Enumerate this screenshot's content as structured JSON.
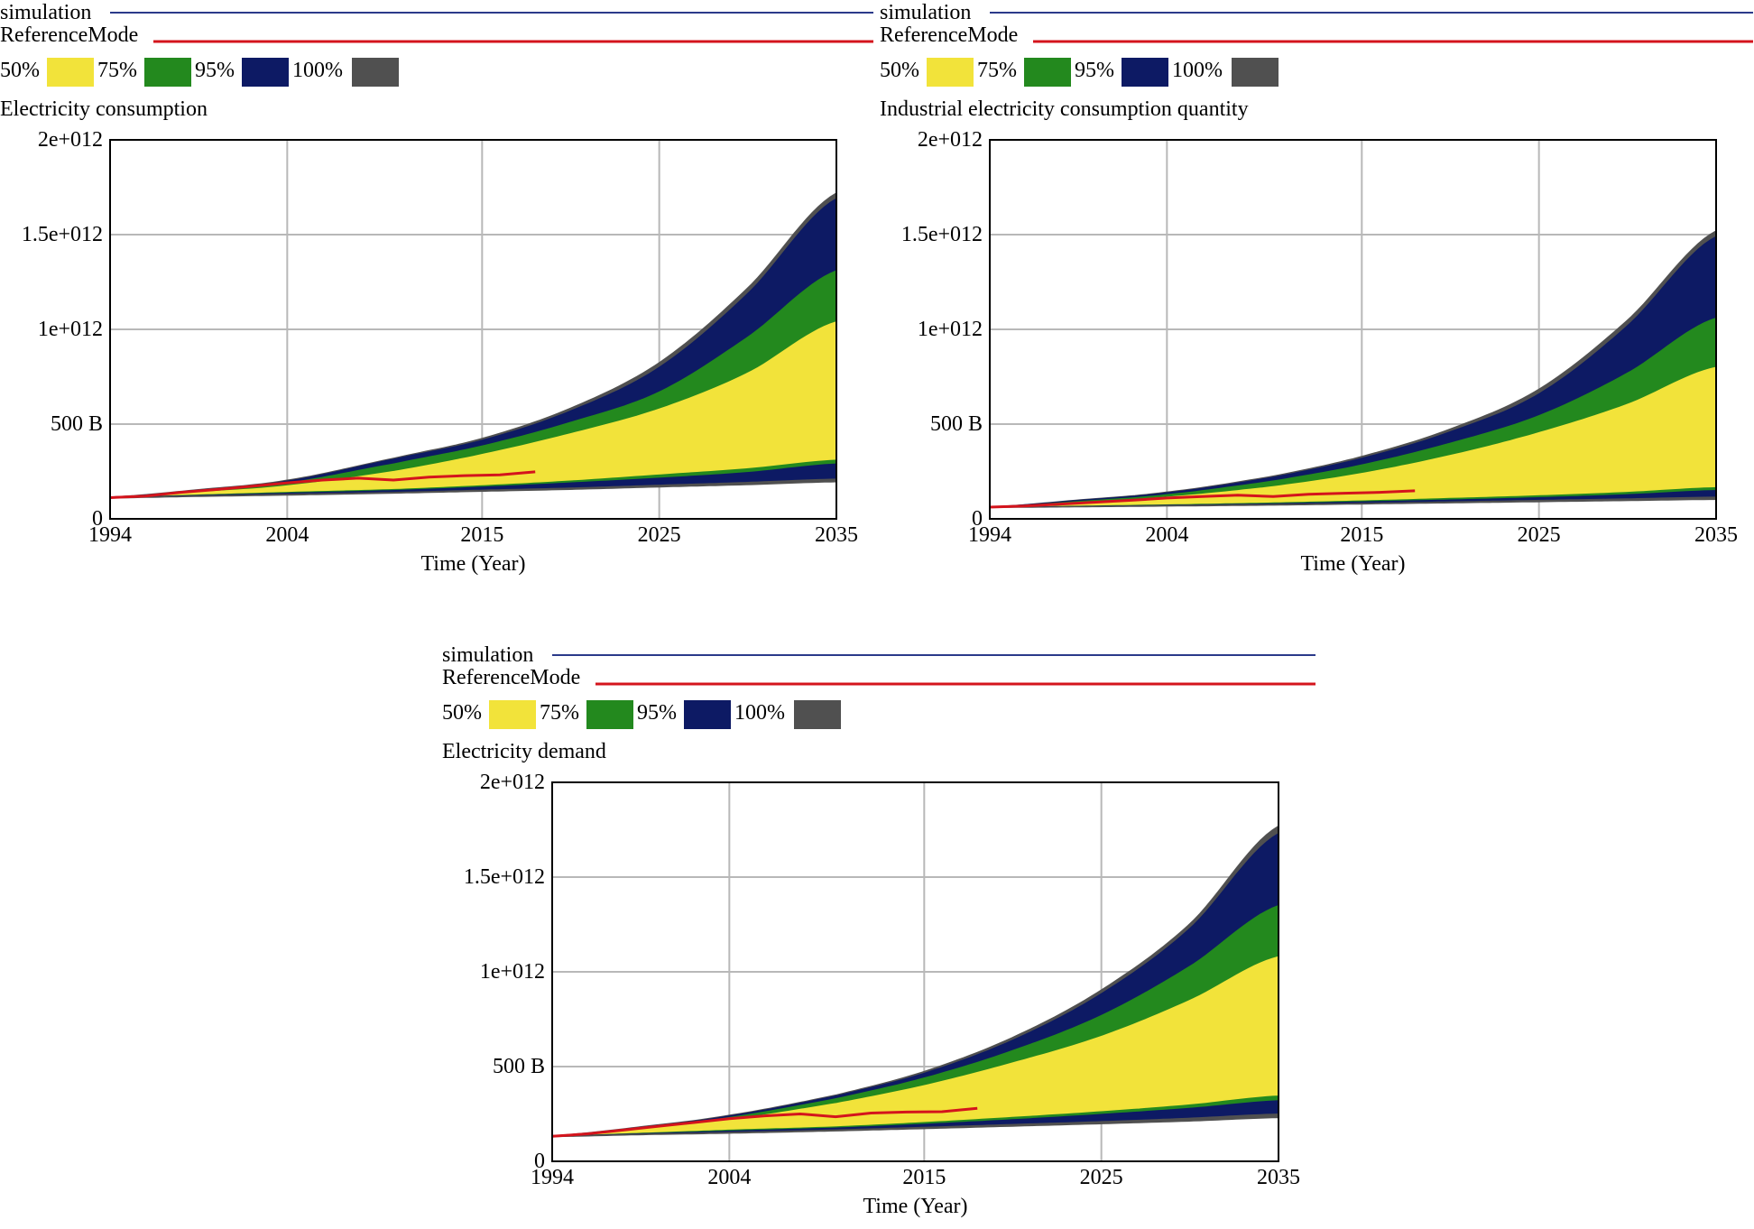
{
  "legend": {
    "series": [
      {
        "name": "simulation",
        "color": "#2b3a8a"
      },
      {
        "name": "ReferenceMode",
        "color": "#d4141c"
      }
    ],
    "bands": [
      {
        "label": "50%",
        "color": "#f2e33a"
      },
      {
        "label": "75%",
        "color": "#23891e"
      },
      {
        "label": "95%",
        "color": "#0d1a64"
      },
      {
        "label": "100%",
        "color": "#505050"
      }
    ]
  },
  "chart_data": [
    {
      "type": "area",
      "title": "Electricity consumption",
      "xlabel": "Time (Year)",
      "ylabel": "",
      "xlim": [
        1994,
        2035
      ],
      "ylim": [
        0,
        2000000000000
      ],
      "xticks": [
        1994,
        2004,
        2015,
        2025,
        2035
      ],
      "xtick_labels": [
        "1994",
        "2004",
        "2015",
        "2025",
        "2035"
      ],
      "yticks": [
        0,
        500000000000,
        1000000000000,
        1500000000000,
        2000000000000
      ],
      "ytick_labels": [
        "0",
        "500 B",
        "1e+012",
        "1.5e+012",
        "2e+012"
      ],
      "grid": true,
      "x": [
        1994,
        1999,
        2004,
        2010,
        2015,
        2020,
        2025,
        2030,
        2035
      ],
      "bands": {
        "min": [
          110,
          118,
          125,
          135,
          145,
          155,
          168,
          180,
          195
        ],
        "p2_5": [
          112,
          121,
          130,
          140,
          152,
          163,
          178,
          193,
          210
        ],
        "p12_5": [
          113,
          124,
          136,
          150,
          168,
          190,
          215,
          245,
          290
        ],
        "p25": [
          113,
          126,
          140,
          155,
          175,
          200,
          232,
          265,
          310
        ],
        "p75": [
          113,
          140,
          175,
          250,
          340,
          450,
          580,
          770,
          1040
        ],
        "p87_5": [
          113,
          145,
          190,
          290,
          385,
          510,
          670,
          960,
          1310
        ],
        "p97_5": [
          114,
          152,
          200,
          315,
          415,
          570,
          800,
          1190,
          1690
        ],
        "max": [
          116,
          155,
          205,
          320,
          425,
          585,
          825,
          1220,
          1720
        ]
      },
      "band_units": "B",
      "reference": {
        "x": [
          1994,
          1996,
          1998,
          2000,
          2002,
          2004,
          2006,
          2008,
          2010,
          2012,
          2014,
          2016,
          2018
        ],
        "y": [
          112,
          120,
          140,
          155,
          172,
          190,
          205,
          215,
          205,
          220,
          228,
          232,
          248
        ]
      }
    },
    {
      "type": "area",
      "title": "Industrial electricity consumption quantity",
      "xlabel": "Time (Year)",
      "ylabel": "",
      "xlim": [
        1994,
        2035
      ],
      "ylim": [
        0,
        2000000000000
      ],
      "xticks": [
        1994,
        2004,
        2015,
        2025,
        2035
      ],
      "xtick_labels": [
        "1994",
        "2004",
        "2015",
        "2025",
        "2035"
      ],
      "yticks": [
        0,
        500000000000,
        1000000000000,
        1500000000000,
        2000000000000
      ],
      "ytick_labels": [
        "0",
        "500 B",
        "1e+012",
        "1.5e+012",
        "2e+012"
      ],
      "grid": true,
      "x": [
        1994,
        1999,
        2004,
        2010,
        2015,
        2020,
        2025,
        2030,
        2035
      ],
      "bands": {
        "min": [
          60,
          63,
          67,
          72,
          78,
          84,
          90,
          96,
          102
        ],
        "p2_5": [
          61,
          65,
          70,
          76,
          82,
          90,
          98,
          106,
          115
        ],
        "p12_5": [
          61,
          66,
          72,
          80,
          90,
          100,
          112,
          128,
          150
        ],
        "p25": [
          61,
          67,
          74,
          84,
          95,
          108,
          122,
          140,
          165
        ],
        "p75": [
          61,
          85,
          115,
          170,
          240,
          335,
          455,
          605,
          800
        ],
        "p87_5": [
          62,
          92,
          128,
          200,
          285,
          400,
          545,
          770,
          1060
        ],
        "p97_5": [
          63,
          98,
          138,
          220,
          320,
          460,
          660,
          1020,
          1490
        ],
        "max": [
          64,
          100,
          142,
          226,
          330,
          475,
          685,
          1050,
          1520
        ]
      },
      "band_units": "B",
      "reference": {
        "x": [
          1994,
          1996,
          1998,
          2000,
          2002,
          2004,
          2006,
          2008,
          2010,
          2012,
          2014,
          2016,
          2018
        ],
        "y": [
          62,
          68,
          78,
          88,
          98,
          110,
          118,
          125,
          118,
          130,
          135,
          140,
          148
        ]
      }
    },
    {
      "type": "area",
      "title": "Electricity demand",
      "xlabel": "Time (Year)",
      "ylabel": "",
      "xlim": [
        1994,
        2035
      ],
      "ylim": [
        0,
        2000000000000
      ],
      "xticks": [
        1994,
        2004,
        2015,
        2025,
        2035
      ],
      "xtick_labels": [
        "1994",
        "2004",
        "2015",
        "2025",
        "2035"
      ],
      "yticks": [
        0,
        500000000000,
        1000000000000,
        1500000000000,
        2000000000000
      ],
      "ytick_labels": [
        "0",
        "500 B",
        "1e+012",
        "1.5e+012",
        "2e+012"
      ],
      "grid": true,
      "x": [
        1994,
        1999,
        2004,
        2010,
        2015,
        2020,
        2025,
        2030,
        2035
      ],
      "bands": {
        "min": [
          130,
          140,
          148,
          160,
          172,
          185,
          198,
          212,
          230
        ],
        "p2_5": [
          132,
          143,
          153,
          166,
          180,
          195,
          210,
          228,
          250
        ],
        "p12_5": [
          133,
          146,
          160,
          176,
          196,
          220,
          248,
          280,
          320
        ],
        "p25": [
          133,
          148,
          165,
          182,
          205,
          232,
          262,
          298,
          345
        ],
        "p75": [
          134,
          170,
          220,
          305,
          400,
          520,
          660,
          850,
          1080
        ],
        "p87_5": [
          134,
          175,
          232,
          330,
          440,
          585,
          770,
          1030,
          1350
        ],
        "p97_5": [
          135,
          180,
          240,
          345,
          465,
          640,
          885,
          1230,
          1730
        ],
        "max": [
          136,
          183,
          244,
          350,
          475,
          655,
          905,
          1255,
          1770
        ]
      },
      "band_units": "B",
      "reference": {
        "x": [
          1994,
          1996,
          1998,
          2000,
          2002,
          2004,
          2006,
          2008,
          2010,
          2012,
          2014,
          2016,
          2018
        ],
        "y": [
          132,
          145,
          165,
          185,
          205,
          225,
          240,
          250,
          235,
          255,
          260,
          262,
          280
        ]
      }
    }
  ]
}
